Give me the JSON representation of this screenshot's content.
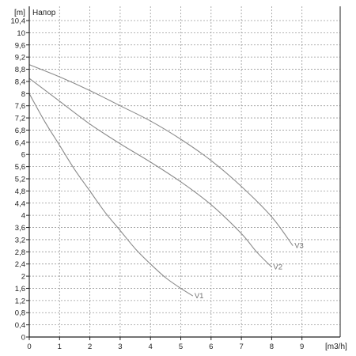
{
  "chart_data": {
    "type": "line",
    "title": "",
    "ylabel": "[m]",
    "xlabel": "[m3/h]",
    "legend_title": "Напор",
    "xlim": [
      0,
      10
    ],
    "ylim": [
      0,
      10.8
    ],
    "x_ticks": [
      0,
      1,
      2,
      3,
      4,
      5,
      6,
      7,
      8,
      9
    ],
    "x_tick_labels": [
      "0",
      "1",
      "2",
      "3",
      "4",
      "5",
      "6",
      "7",
      "8",
      "9"
    ],
    "y_ticks": [
      0,
      0.4,
      0.8,
      1.2,
      1.6,
      2,
      2.4,
      2.8,
      3.2,
      3.6,
      4,
      4.4,
      4.8,
      5.2,
      5.6,
      6,
      6.4,
      6.8,
      7.2,
      7.6,
      8,
      8.4,
      8.8,
      9.2,
      9.6,
      10,
      10.4
    ],
    "y_tick_labels": [
      "0",
      "0,4",
      "0,8",
      "1,2",
      "1,6",
      "2",
      "2,4",
      "2,8",
      "3,2",
      "3,6",
      "4",
      "4,4",
      "4,8",
      "5,2",
      "5,6",
      "6",
      "6,4",
      "6,8",
      "7,2",
      "7,6",
      "8",
      "8,4",
      "8,8",
      "9,2",
      "9,6",
      "10",
      "10,4"
    ],
    "grid": true,
    "colors": {
      "curve": "#8a8a8a",
      "grid": "#9a9a9a",
      "axis": "#222222"
    },
    "series": [
      {
        "name": "V1",
        "x": [
          0,
          0.5,
          1,
          1.5,
          2,
          2.5,
          3,
          3.5,
          4,
          4.5,
          5,
          5.4
        ],
        "y": [
          8.0,
          7.1,
          6.3,
          5.5,
          4.8,
          4.1,
          3.5,
          2.9,
          2.4,
          1.95,
          1.6,
          1.35
        ]
      },
      {
        "name": "V2",
        "x": [
          0,
          1,
          2,
          3,
          4,
          5,
          6,
          7,
          7.5,
          8.0
        ],
        "y": [
          8.5,
          7.75,
          7.0,
          6.35,
          5.75,
          5.1,
          4.35,
          3.4,
          2.8,
          2.3
        ]
      },
      {
        "name": "V3",
        "x": [
          0,
          1,
          2,
          3,
          4,
          5,
          6,
          7,
          8,
          8.7
        ],
        "y": [
          8.95,
          8.55,
          8.1,
          7.6,
          7.1,
          6.5,
          5.8,
          4.95,
          3.95,
          3.0
        ]
      }
    ]
  }
}
